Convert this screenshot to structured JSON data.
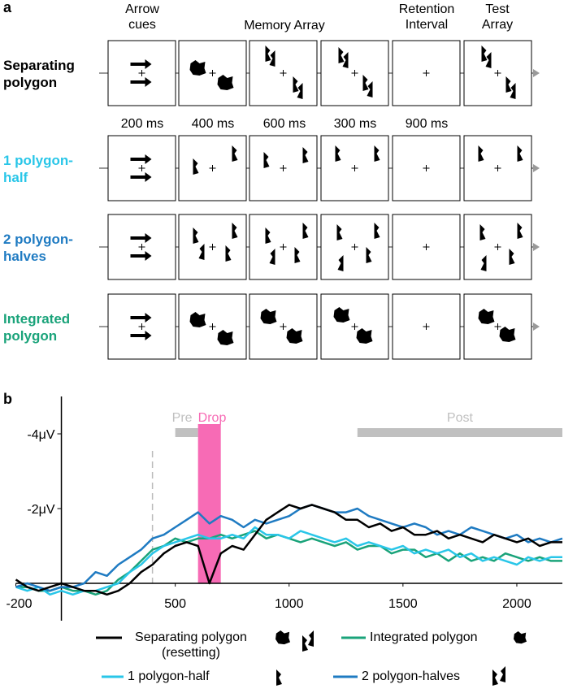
{
  "panel_a": {
    "label": "a",
    "column_headers": [
      "Arrow cues",
      "Memory Array",
      "Retention Interval",
      "Test Array"
    ],
    "durations": [
      "200 ms",
      "400 ms",
      "600 ms",
      "300 ms",
      "900 ms"
    ],
    "rows": [
      {
        "label": "Separating polygon",
        "color": "#000000"
      },
      {
        "label": "1 polygon-half",
        "color": "#29c6e8"
      },
      {
        "label": "2 polygon-halves",
        "color": "#1f7bc2"
      },
      {
        "label": "Integrated polygon",
        "color": "#1aa37a"
      }
    ]
  },
  "chart_data": {
    "type": "line",
    "label": "b",
    "x": [
      -200,
      -150,
      -100,
      -50,
      0,
      50,
      100,
      150,
      200,
      250,
      300,
      350,
      400,
      450,
      500,
      550,
      600,
      650,
      700,
      750,
      800,
      850,
      900,
      950,
      1000,
      1050,
      1100,
      1150,
      1200,
      1250,
      1300,
      1350,
      1400,
      1450,
      1500,
      1550,
      1600,
      1650,
      1700,
      1750,
      1800,
      1850,
      1900,
      1950,
      2000,
      2050,
      2100,
      2150,
      2200
    ],
    "series": [
      {
        "name": "Integrated polygon",
        "color": "#1aa37a",
        "values": [
          0.1,
          0.1,
          0.2,
          0.2,
          0.1,
          0.2,
          0.2,
          0.3,
          0.2,
          -0.1,
          -0.3,
          -0.6,
          -0.9,
          -1.0,
          -1.2,
          -1.1,
          -1.2,
          -1.2,
          -1.3,
          -1.2,
          -1.3,
          -1.4,
          -1.2,
          -1.3,
          -1.2,
          -1.1,
          -1.2,
          -1.1,
          -1.0,
          -1.1,
          -0.9,
          -1.0,
          -1.0,
          -0.8,
          -0.9,
          -0.9,
          -0.7,
          -0.8,
          -0.6,
          -0.8,
          -0.6,
          -0.7,
          -0.6,
          -0.8,
          -0.7,
          -0.6,
          -0.7,
          -0.6,
          -0.6
        ]
      },
      {
        "name": "1 polygon-half",
        "color": "#29c6e8",
        "values": [
          0.1,
          0.2,
          0.1,
          0.3,
          0.2,
          0.3,
          0.2,
          0.2,
          0.1,
          0,
          -0.3,
          -0.5,
          -0.8,
          -1.0,
          -1.1,
          -1.2,
          -1.3,
          -1.2,
          -1.2,
          -1.3,
          -1.2,
          -1.5,
          -1.3,
          -1.3,
          -1.2,
          -1.4,
          -1.3,
          -1.2,
          -1.1,
          -1.2,
          -1.0,
          -1.1,
          -1.0,
          -0.9,
          -1.0,
          -0.8,
          -0.9,
          -0.8,
          -0.9,
          -0.7,
          -0.8,
          -0.6,
          -0.7,
          -0.6,
          -0.5,
          -0.7,
          -0.6,
          -0.7,
          -0.7
        ]
      },
      {
        "name": "2 polygon-halves",
        "color": "#1f7bc2",
        "values": [
          0.1,
          0,
          0.1,
          0.2,
          0.1,
          0.1,
          0,
          -0.3,
          -0.2,
          -0.5,
          -0.7,
          -0.9,
          -1.2,
          -1.3,
          -1.5,
          -1.7,
          -1.9,
          -1.6,
          -1.8,
          -1.7,
          -1.5,
          -1.7,
          -1.6,
          -1.7,
          -1.8,
          -2.0,
          -2.1,
          -2.0,
          -1.9,
          -1.9,
          -2.0,
          -1.8,
          -1.7,
          -1.6,
          -1.5,
          -1.6,
          -1.5,
          -1.3,
          -1.4,
          -1.3,
          -1.5,
          -1.4,
          -1.3,
          -1.2,
          -1.3,
          -1.1,
          -1.2,
          -1.1,
          -1.2
        ]
      },
      {
        "name": "Separating polygon (resetting)",
        "color": "#000000",
        "values": [
          -0.1,
          0.1,
          0.2,
          0.1,
          0,
          0.1,
          0.2,
          0.2,
          0.3,
          0.2,
          0,
          -0.3,
          -0.5,
          -0.8,
          -1.0,
          -1.1,
          -1.0,
          0,
          -0.8,
          -1.0,
          -0.9,
          -1.3,
          -1.7,
          -1.9,
          -2.1,
          -2.0,
          -2.1,
          -2.0,
          -1.9,
          -1.7,
          -1.7,
          -1.5,
          -1.6,
          -1.4,
          -1.5,
          -1.3,
          -1.3,
          -1.4,
          -1.2,
          -1.3,
          -1.2,
          -1.1,
          -1.3,
          -1.2,
          -1.1,
          -1.2,
          -1.0,
          -1.1,
          -1.1
        ]
      }
    ],
    "xlim": [
      -200,
      2200
    ],
    "xticks": [
      -200,
      500,
      1000,
      1500,
      2000
    ],
    "ylim": [
      1,
      -5
    ],
    "yticks": [
      {
        "value": -4,
        "label": "-4μV"
      },
      {
        "value": -2,
        "label": "-2μV"
      }
    ],
    "event_line": 400,
    "regions": [
      {
        "label": "Pre",
        "start": 500,
        "end": 600,
        "color": "#c0c0c0"
      },
      {
        "label": "Drop",
        "start": 600,
        "end": 700,
        "color": "#f76bb5"
      },
      {
        "label": "Post",
        "start": 1300,
        "end": 2200,
        "color": "#c0c0c0"
      }
    ]
  }
}
